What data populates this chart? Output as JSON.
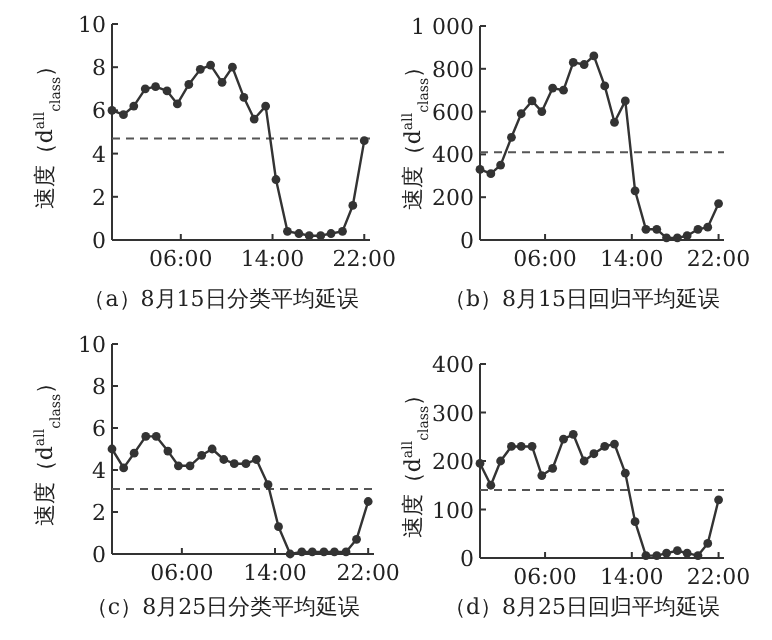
{
  "chart_data": [
    {
      "type": "line",
      "title": "（a）8月15日分类平均延误",
      "ylabel": "速度（d$^{all}$$_{class}$）",
      "marker": "circle",
      "xlim": [
        0,
        22.5
      ],
      "ylim": [
        0,
        10
      ],
      "xticks": [
        {
          "value": 6,
          "label": "06:00"
        },
        {
          "value": 14,
          "label": "14:00"
        },
        {
          "value": 22,
          "label": "22:00"
        }
      ],
      "yticks": [
        0,
        2,
        4,
        6,
        8,
        10
      ],
      "x": [
        0,
        1,
        1.9,
        2.9,
        3.8,
        4.8,
        5.7,
        6.7,
        7.7,
        8.6,
        9.6,
        10.5,
        11.5,
        12.4,
        13.4,
        14.3,
        15.3,
        16.3,
        17.2,
        18.2,
        19.1,
        20.1,
        21,
        22
      ],
      "series": [
        {
          "color": "#333333",
          "values": [
            6.0,
            5.8,
            6.2,
            7.0,
            7.1,
            6.9,
            6.3,
            7.2,
            7.9,
            8.1,
            7.3,
            8.0,
            6.6,
            5.6,
            6.2,
            2.8,
            0.4,
            0.3,
            0.2,
            0.2,
            0.3,
            0.4,
            1.6,
            4.6
          ]
        }
      ],
      "ref_lines": [
        {
          "axis": "y",
          "value": 4.7,
          "color": "#555555",
          "line_style": "dashed"
        }
      ]
    },
    {
      "type": "line",
      "title": "（b）8月15日回归平均延误",
      "ylabel": "速度（d$^{all}$$_{class}$）",
      "marker": "circle",
      "xlim": [
        0,
        22.5
      ],
      "ylim": [
        0,
        1000
      ],
      "xticks": [
        {
          "value": 6,
          "label": "06:00"
        },
        {
          "value": 14,
          "label": "14:00"
        },
        {
          "value": 22,
          "label": "22:00"
        }
      ],
      "yticks": [
        0,
        200,
        400,
        600,
        800,
        {
          "value": 1000,
          "label": "1 000"
        }
      ],
      "x": [
        0,
        1,
        1.9,
        2.9,
        3.8,
        4.8,
        5.7,
        6.7,
        7.7,
        8.6,
        9.6,
        10.5,
        11.5,
        12.4,
        13.4,
        14.3,
        15.3,
        16.3,
        17.2,
        18.2,
        19.1,
        20.1,
        21,
        22
      ],
      "series": [
        {
          "color": "#333333",
          "values": [
            330,
            310,
            350,
            480,
            590,
            650,
            600,
            710,
            700,
            830,
            820,
            860,
            720,
            550,
            650,
            230,
            50,
            50,
            10,
            10,
            20,
            50,
            60,
            170
          ]
        }
      ],
      "ref_lines": [
        {
          "axis": "y",
          "value": 410,
          "color": "#555555",
          "line_style": "dashed"
        }
      ]
    },
    {
      "type": "line",
      "title": "（c）8月25日分类平均延误",
      "ylabel": "速度（d$^{all}$$_{class}$）",
      "marker": "circle",
      "xlim": [
        0,
        22.5
      ],
      "ylim": [
        0,
        10
      ],
      "xticks": [
        {
          "value": 6,
          "label": "06:00"
        },
        {
          "value": 14,
          "label": "14:00"
        },
        {
          "value": 22,
          "label": "22:00"
        }
      ],
      "yticks": [
        0,
        2,
        4,
        6,
        8,
        10
      ],
      "x": [
        0,
        1,
        1.9,
        2.9,
        3.8,
        4.8,
        5.7,
        6.7,
        7.7,
        8.6,
        9.6,
        10.5,
        11.5,
        12.4,
        13.4,
        14.3,
        15.3,
        16.3,
        17.2,
        18.2,
        19.1,
        20.1,
        21,
        22
      ],
      "series": [
        {
          "color": "#333333",
          "values": [
            5.0,
            4.1,
            4.8,
            5.6,
            5.6,
            4.9,
            4.2,
            4.2,
            4.7,
            5.0,
            4.5,
            4.3,
            4.3,
            4.5,
            3.3,
            1.3,
            0.0,
            0.1,
            0.1,
            0.1,
            0.1,
            0.1,
            0.7,
            2.5
          ]
        }
      ],
      "ref_lines": [
        {
          "axis": "y",
          "value": 3.1,
          "color": "#555555",
          "line_style": "dashed"
        }
      ]
    },
    {
      "type": "line",
      "title": "（d）8月25日回归平均延误",
      "ylabel": "速度（d$^{all}$$_{class}$）",
      "marker": "circle",
      "xlim": [
        0,
        22.5
      ],
      "ylim": [
        0,
        400
      ],
      "xticks": [
        {
          "value": 6,
          "label": "06:00"
        },
        {
          "value": 14,
          "label": "14:00"
        },
        {
          "value": 22,
          "label": "22:00"
        }
      ],
      "yticks": [
        0,
        100,
        200,
        300,
        400
      ],
      "x": [
        0,
        1,
        1.9,
        2.9,
        3.8,
        4.8,
        5.7,
        6.7,
        7.7,
        8.6,
        9.6,
        10.5,
        11.5,
        12.4,
        13.4,
        14.3,
        15.3,
        16.3,
        17.2,
        18.2,
        19.1,
        20.1,
        21,
        22
      ],
      "series": [
        {
          "color": "#333333",
          "values": [
            195,
            150,
            200,
            230,
            230,
            230,
            170,
            185,
            245,
            255,
            200,
            215,
            230,
            235,
            175,
            75,
            5,
            5,
            10,
            15,
            10,
            5,
            30,
            120
          ]
        }
      ],
      "ref_lines": [
        {
          "axis": "y",
          "value": 140,
          "color": "#555555",
          "line_style": "dashed"
        }
      ]
    }
  ]
}
